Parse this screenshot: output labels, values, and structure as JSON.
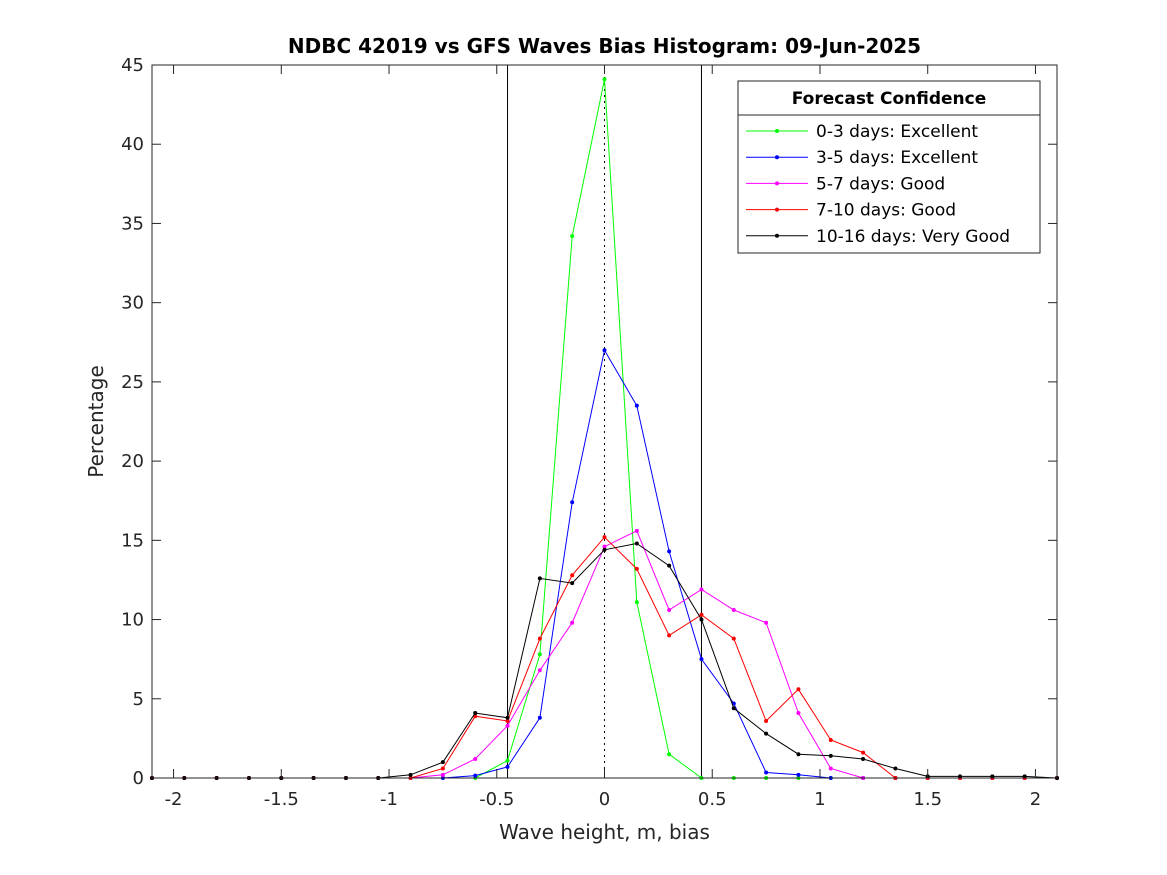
{
  "chart_data": {
    "type": "line",
    "title": "NDBC 42019 vs GFS Waves Bias Histogram: 09-Jun-2025",
    "xlabel": "Wave height, m, bias",
    "ylabel": "Percentage",
    "xlim": [
      -2.1,
      2.1
    ],
    "ylim": [
      0,
      45
    ],
    "xticks": [
      -2,
      -1.5,
      -1,
      -0.5,
      0,
      0.5,
      1,
      1.5,
      2
    ],
    "xtick_labels": [
      "-2",
      "-1.5",
      "-1",
      "-0.5",
      "0",
      "0.5",
      "1",
      "1.5",
      "2"
    ],
    "yticks": [
      0,
      5,
      10,
      15,
      20,
      25,
      30,
      35,
      40,
      45
    ],
    "ytick_labels": [
      "0",
      "5",
      "10",
      "15",
      "20",
      "25",
      "30",
      "35",
      "40",
      "45"
    ],
    "reference_lines": {
      "solid_x": [
        -0.45,
        0.45
      ],
      "dotted_x": [
        0
      ]
    },
    "legend": {
      "title": "Forecast Confidence",
      "placement": "top-right"
    },
    "x": [
      -2.1,
      -1.95,
      -1.8,
      -1.65,
      -1.5,
      -1.35,
      -1.2,
      -1.05,
      -0.9,
      -0.75,
      -0.6,
      -0.45,
      -0.3,
      -0.15,
      0,
      0.15,
      0.3,
      0.45,
      0.6,
      0.75,
      0.9,
      1.05,
      1.2,
      1.35,
      1.5,
      1.65,
      1.8,
      1.95,
      2.1
    ],
    "series": [
      {
        "name": "0-3 days: Excellent",
        "color": "#00ff00",
        "values": [
          0,
          0,
          0,
          0,
          0,
          0,
          0,
          0,
          0,
          0,
          0,
          1.1,
          7.8,
          34.2,
          44.1,
          11.1,
          1.5,
          0,
          0,
          0,
          0,
          0,
          0,
          0,
          0,
          0,
          0,
          0,
          0
        ]
      },
      {
        "name": "3-5 days: Excellent",
        "color": "#0000ff",
        "values": [
          0,
          0,
          0,
          0,
          0,
          0,
          0,
          0,
          0,
          0,
          0.15,
          0.7,
          3.8,
          17.4,
          27.0,
          23.5,
          14.3,
          7.5,
          4.7,
          0.35,
          0.2,
          0,
          0,
          0,
          0,
          0,
          0,
          0,
          0
        ]
      },
      {
        "name": "5-7 days: Good",
        "color": "#ff00ff",
        "values": [
          0,
          0,
          0,
          0,
          0,
          0,
          0,
          0,
          0,
          0.2,
          1.2,
          3.3,
          6.8,
          9.8,
          14.6,
          15.6,
          10.6,
          11.9,
          10.6,
          9.8,
          4.1,
          0.6,
          0,
          0,
          0,
          0,
          0,
          0,
          0
        ]
      },
      {
        "name": "7-10 days: Good",
        "color": "#ff0000",
        "values": [
          0,
          0,
          0,
          0,
          0,
          0,
          0,
          0,
          0,
          0.6,
          3.9,
          3.6,
          8.8,
          12.8,
          15.2,
          13.2,
          9.0,
          10.3,
          8.8,
          3.6,
          5.6,
          2.4,
          1.6,
          0,
          0,
          0,
          0,
          0,
          0
        ]
      },
      {
        "name": "10-16 days: Very Good",
        "color": "#000000",
        "values": [
          0,
          0,
          0,
          0,
          0,
          0,
          0,
          0,
          0.2,
          1.0,
          4.1,
          3.8,
          12.6,
          12.3,
          14.4,
          14.8,
          13.4,
          10.0,
          4.4,
          2.8,
          1.5,
          1.4,
          1.2,
          0.6,
          0.1,
          0.1,
          0.1,
          0.1,
          0
        ]
      }
    ]
  }
}
